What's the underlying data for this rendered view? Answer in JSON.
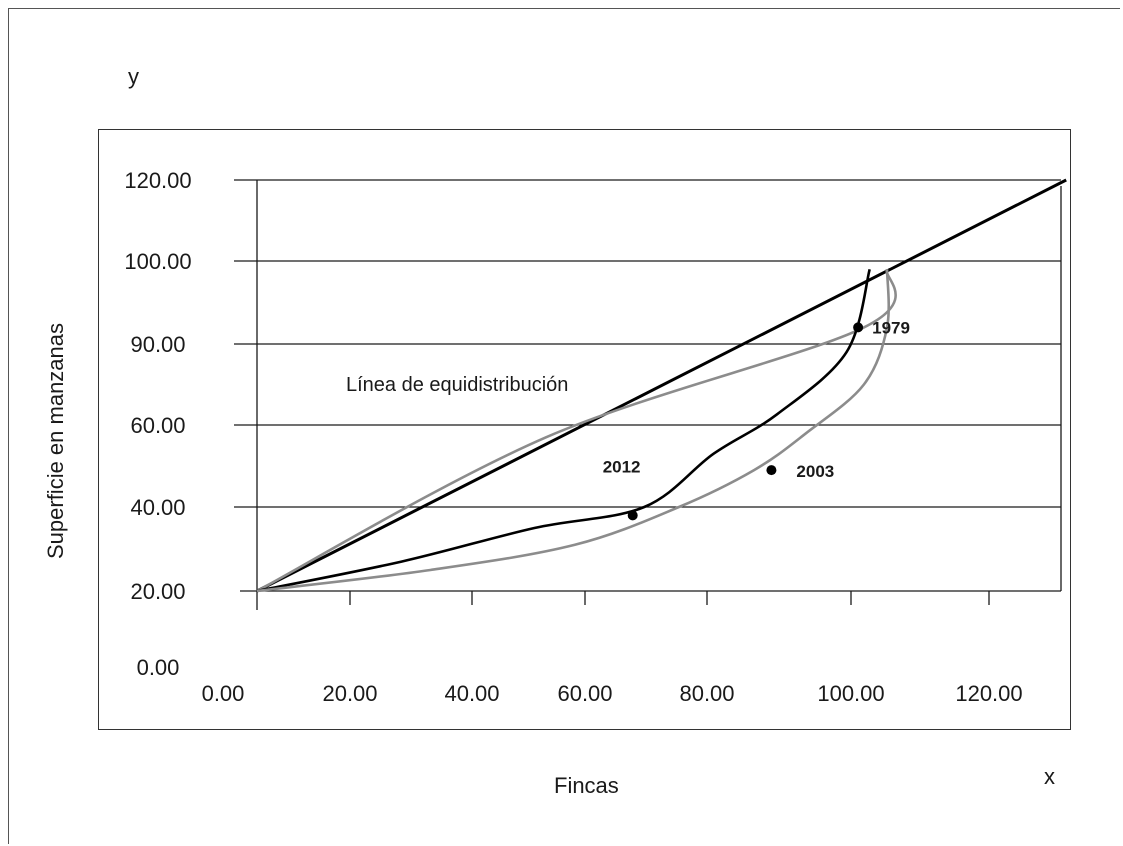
{
  "chart_data": {
    "type": "line",
    "title": "",
    "xlabel": "Fincas",
    "ylabel": "Superficie en manzanas",
    "corner_x": "x",
    "corner_y": "y",
    "x_tick_labels": [
      "0.00",
      "20.00",
      "40.00",
      "60.00",
      "80.00",
      "100.00",
      "120.00"
    ],
    "y_tick_labels": [
      "0.00",
      "20.00",
      "40.00",
      "60.00",
      "90.00",
      "100.00",
      "120.00"
    ],
    "y_categories": [
      {
        "label": "20.00",
        "gridline": false
      },
      {
        "label": "40.00",
        "gridline": true
      },
      {
        "label": "60.00",
        "gridline": true
      },
      {
        "label": "90.00",
        "gridline": true
      },
      {
        "label": "100.00",
        "gridline": true
      },
      {
        "label": "120.00",
        "gridline": true
      }
    ],
    "grid": true,
    "annotation": "Línea de equidistribución",
    "series": [
      {
        "name": "Línea de equidistribución",
        "color": "#000000",
        "x": [
          0,
          140
        ],
        "y": [
          20,
          120
        ]
      },
      {
        "name": "1979",
        "color": "#8c8c8c",
        "x": [
          0,
          50,
          105,
          109
        ],
        "y": [
          20,
          57,
          92,
          99
        ]
      },
      {
        "name": "2012",
        "color": "#000000",
        "x": [
          0,
          25,
          48,
          67,
          79,
          90,
          102,
          106
        ],
        "y": [
          20,
          27,
          35,
          40,
          53,
          64,
          87,
          99
        ]
      },
      {
        "name": "2003",
        "color": "#8c8c8c",
        "x": [
          0,
          30,
          55,
          73,
          86,
          95,
          105,
          109,
          109
        ],
        "y": [
          20,
          25,
          31,
          40,
          49,
          58,
          75,
          92,
          99
        ]
      }
    ],
    "markers": [
      {
        "label": "1979",
        "x": 104,
        "y": 92
      },
      {
        "label": "2012",
        "x": 65,
        "y": 38
      },
      {
        "label": "2003",
        "x": 89,
        "y": 49
      }
    ]
  }
}
